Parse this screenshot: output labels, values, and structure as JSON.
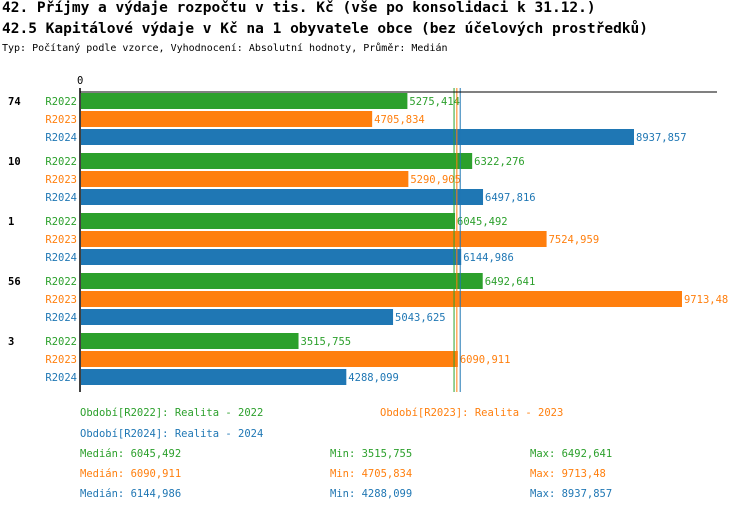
{
  "title": "42. Příjmy a výdaje rozpočtu v tis. Kč (vše po konsolidaci k 31.12.)",
  "subtitle": "42.5 Kapitálové výdaje v Kč na 1 obyvatele obce (bez účelových prostředků)",
  "info": "Typ: Počítaný podle vzorce, Vyhodnocení: Absolutní hodnoty, Průměr: Medián",
  "chart_data": {
    "type": "bar",
    "orientation": "horizontal",
    "categories": [
      "74",
      "10",
      "1",
      "56",
      "3"
    ],
    "x_tick_labels": [
      "0"
    ],
    "series": [
      {
        "name": "R2022",
        "color": "#2ca02c",
        "values": [
          5275.414,
          6322.276,
          6045.492,
          6492.641,
          3515.755
        ],
        "labels": [
          "5275,414",
          "6322,276",
          "6045,492",
          "6492,641",
          "3515,755"
        ]
      },
      {
        "name": "R2023",
        "color": "#ff7f0e",
        "values": [
          4705.834,
          5290.905,
          7524.959,
          9713.48,
          6090.911
        ],
        "labels": [
          "4705,834",
          "5290,905",
          "7524,959",
          "9713,48",
          "6090,911"
        ]
      },
      {
        "name": "R2024",
        "color": "#1f77b4",
        "values": [
          8937.857,
          6497.816,
          6144.986,
          5043.625,
          4288.099
        ],
        "labels": [
          "8937,857",
          "6497,816",
          "6144,986",
          "5043,625",
          "4288,099"
        ]
      }
    ],
    "median_lines": [
      6045.492,
      6090.911,
      6144.986
    ]
  },
  "legend": {
    "periods": [
      "Období[R2022]: Realita - 2022",
      "Období[R2023]: Realita - 2023",
      "Období[R2024]: Realita - 2024"
    ],
    "stats": [
      [
        "Medián: 6045,492",
        "Min: 3515,755",
        "Max: 6492,641"
      ],
      [
        "Medián: 6090,911",
        "Min: 4705,834",
        "Max: 9713,48"
      ],
      [
        "Medián: 6144,986",
        "Min: 4288,099",
        "Max: 8937,857"
      ]
    ]
  }
}
